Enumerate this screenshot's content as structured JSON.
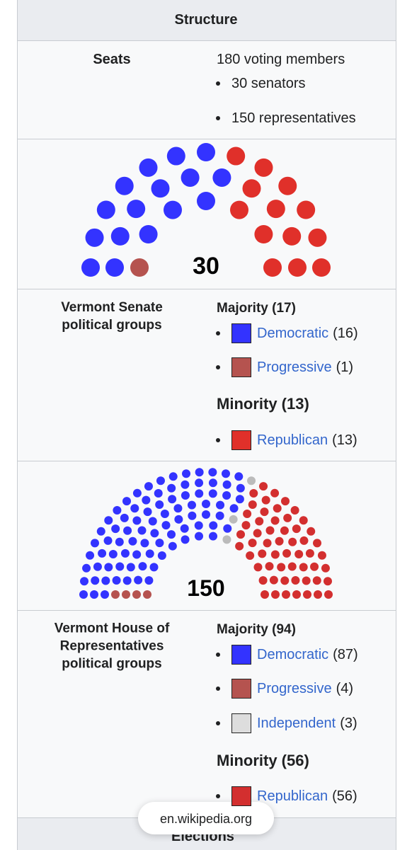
{
  "header": {
    "title": "Structure"
  },
  "seats": {
    "label": "Seats",
    "total": "180 voting members",
    "items": [
      "30 senators",
      "150 representatives"
    ]
  },
  "senate": {
    "diagram": {
      "total": "30",
      "seats": [
        {
          "color": "#b5534f",
          "count": 1
        },
        {
          "color": "#3333ff",
          "count": 16
        },
        {
          "color": "#e0302a",
          "count": 13
        }
      ]
    },
    "label": "Vermont Senate political groups",
    "majority": {
      "title": "Majority (17)",
      "parties": [
        {
          "name": "Democratic",
          "count": "(16)",
          "color": "#3333ff"
        },
        {
          "name": "Progressive",
          "count": "(1)",
          "color": "#b5534f"
        }
      ]
    },
    "minority": {
      "title": "Minority (13)",
      "parties": [
        {
          "name": "Republican",
          "count": "(13)",
          "color": "#e0302a"
        }
      ]
    }
  },
  "house": {
    "diagram": {
      "total": "150",
      "seats": [
        {
          "color": "#b5534f",
          "count": 4
        },
        {
          "color": "#3333ff",
          "count": 87
        },
        {
          "color": "#bbbbbb",
          "count": 3
        },
        {
          "color": "#d32f2f",
          "count": 56
        }
      ]
    },
    "label": "Vermont House of Representatives political groups",
    "majority": {
      "title": "Majority (94)",
      "parties": [
        {
          "name": "Democratic",
          "count": "(87)",
          "color": "#3333ff"
        },
        {
          "name": "Progressive",
          "count": "(4)",
          "color": "#b5534f"
        },
        {
          "name": "Independent",
          "count": "(3)",
          "color": "#dddddd"
        }
      ]
    },
    "minority": {
      "title": "Minority (56)",
      "parties": [
        {
          "name": "Republican",
          "count": "(56)",
          "color": "#d32f2f"
        }
      ]
    }
  },
  "footer": {
    "url": "en.wikipedia.org",
    "next": "Elections"
  }
}
